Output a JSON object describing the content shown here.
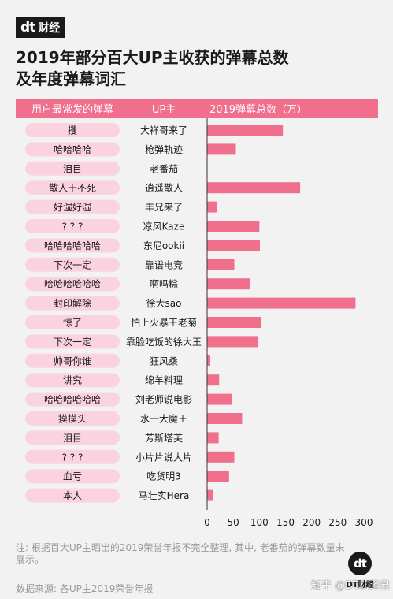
{
  "brand": {
    "logo_mark": "dt",
    "logo_name": "财经",
    "badge_mark": "dt",
    "badge_name": "DT财经"
  },
  "title_line1": "2019年部分百大UP主收获的弹幕总数",
  "title_line2": "及年度弹幕词汇",
  "note": "注: 根据百大UP主晒出的2019荣誉年报不完全整理, 其中, 老番茄的弹幕数量未展示。",
  "source": "数据来源: 各UP主2019荣誉年报",
  "watermark": "知乎 @DT财经君",
  "colors": {
    "header": "#ef6f8c",
    "bar": "#ef6f8c",
    "pill": "#fbd3de",
    "pill_text": "#1a1a1a"
  },
  "chart_data": {
    "type": "bar",
    "orientation": "horizontal",
    "columns": [
      "用户最常发的弹幕",
      "UP主",
      "2019弹幕总数（万）"
    ],
    "rows": [
      {
        "danmu": "攫",
        "up": "大祥哥来了",
        "value": 145
      },
      {
        "danmu": "哈哈哈哈",
        "up": "枪弹轨迹",
        "value": 55
      },
      {
        "danmu": "泪目",
        "up": "老番茄",
        "value": null
      },
      {
        "danmu": "散人干不死",
        "up": "逍遥散人",
        "value": 178
      },
      {
        "danmu": "好湿好湿",
        "up": "丰兄来了",
        "value": 18
      },
      {
        "danmu": "? ? ?",
        "up": "凉风Kaze",
        "value": 100
      },
      {
        "danmu": "哈哈哈哈哈哈",
        "up": "东尼ookii",
        "value": 101
      },
      {
        "danmu": "下次一定",
        "up": "靠谱电竞",
        "value": 52
      },
      {
        "danmu": "哈哈哈哈哈哈",
        "up": "啊吗粽",
        "value": 82
      },
      {
        "danmu": "封印解除",
        "up": "徐大sao",
        "value": 284
      },
      {
        "danmu": "惊了",
        "up": "怕上火暴王老菊",
        "value": 104
      },
      {
        "danmu": "下次一定",
        "up": "靠脸吃饭的徐大王",
        "value": 97
      },
      {
        "danmu": "帅哥你谁",
        "up": "狂风桑",
        "value": 6
      },
      {
        "danmu": "讲究",
        "up": "绵羊料理",
        "value": 23
      },
      {
        "danmu": "哈哈哈哈哈哈",
        "up": "刘老师说电影",
        "value": 48
      },
      {
        "danmu": "摸摸头",
        "up": "水一大魔王",
        "value": 67
      },
      {
        "danmu": "泪目",
        "up": "芳斯塔芙",
        "value": 22
      },
      {
        "danmu": "? ? ?",
        "up": "小片片说大片",
        "value": 52
      },
      {
        "danmu": "血亏",
        "up": "吃货明3",
        "value": 42
      },
      {
        "danmu": "本人",
        "up": "马壮实Hera",
        "value": 11
      }
    ],
    "xlim": [
      0,
      300
    ],
    "ticks": [
      "0",
      "50",
      "100",
      "150",
      "200",
      "250",
      "300"
    ],
    "grid": false
  }
}
